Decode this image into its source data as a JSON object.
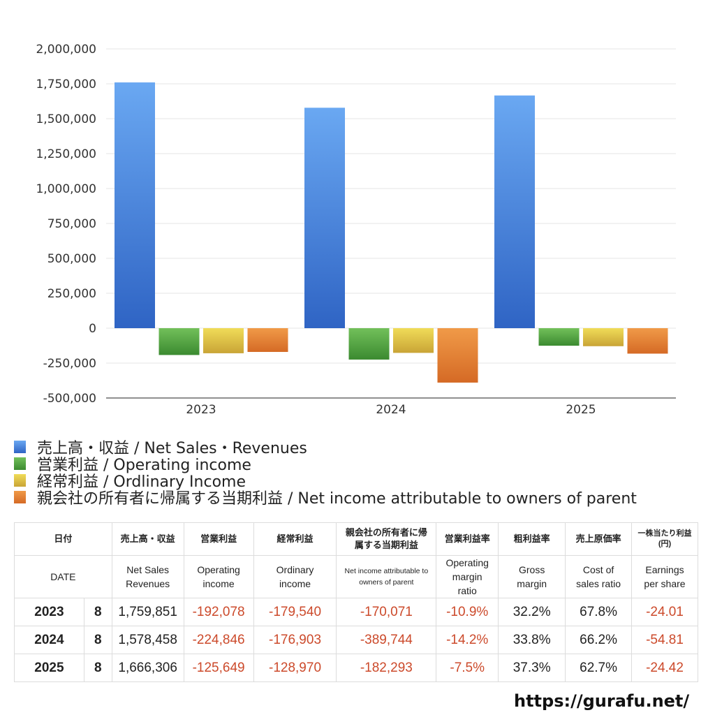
{
  "chart_data": {
    "type": "bar",
    "categories": [
      "2023",
      "2024",
      "2025"
    ],
    "series": [
      {
        "name": "売上高・収益 / Net Sales・Revenues",
        "color": "#3b7ee0",
        "values": [
          1759851,
          1578458,
          1666306
        ]
      },
      {
        "name": "営業利益 / Operating income",
        "color": "#4e9e3c",
        "values": [
          -192078,
          -224846,
          -125649
        ]
      },
      {
        "name": "経常利益 / Ordlinary Income",
        "color": "#dcc040",
        "values": [
          -179540,
          -176903,
          -128970
        ]
      },
      {
        "name": "親会社の所有者に帰属する当期利益 / Net income attributable to owners of parent",
        "color": "#e0782f",
        "values": [
          -170071,
          -389744,
          -182293
        ]
      }
    ],
    "ylim": [
      -500000,
      2000000
    ],
    "yticks": [
      2000000,
      1750000,
      1500000,
      1250000,
      1000000,
      750000,
      500000,
      250000,
      0,
      -250000,
      -500000
    ],
    "ytick_labels": [
      "2,000,000",
      "1,750,000",
      "1,500,000",
      "1,250,000",
      "1,000,000",
      "750,000",
      "500,000",
      "250,000",
      "0",
      "-250,000",
      "-500,000"
    ],
    "grid": true,
    "legend_position": "bottom"
  },
  "table": {
    "header_jp": [
      "日付",
      "",
      "売上高・収益",
      "営業利益",
      "経常利益",
      "親会社の所有者に帰属する当期利益",
      "営業利益率",
      "粗利益率",
      "売上原価率",
      "一株当たり利益(円)"
    ],
    "header_en": [
      "DATE",
      "",
      "Net Sales Revenues",
      "Operating income",
      "Ordinary income",
      "Net income attributable to owners of parent",
      "Operating margin ratio",
      "Gross margin",
      "Cost of sales ratio",
      "Earnings per share"
    ],
    "rows": [
      {
        "year": "2023",
        "month": "8",
        "sales": "1,759,851",
        "op": "-192,078",
        "ord": "-179,540",
        "net": "-170,071",
        "opm": "-10.9%",
        "gm": "32.2%",
        "cos": "67.8%",
        "eps": "-24.01"
      },
      {
        "year": "2024",
        "month": "8",
        "sales": "1,578,458",
        "op": "-224,846",
        "ord": "-176,903",
        "net": "-389,744",
        "opm": "-14.2%",
        "gm": "33.8%",
        "cos": "66.2%",
        "eps": "-54.81"
      },
      {
        "year": "2025",
        "month": "8",
        "sales": "1,666,306",
        "op": "-125,649",
        "ord": "-128,970",
        "net": "-182,293",
        "opm": "-7.5%",
        "gm": "37.3%",
        "cos": "62.7%",
        "eps": "-24.42"
      }
    ]
  },
  "site_url": "https://gurafu.net/"
}
